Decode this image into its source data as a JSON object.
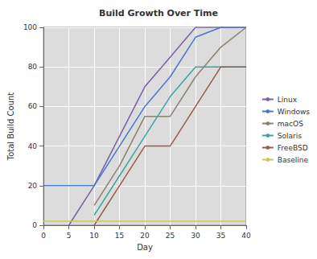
{
  "chart_data": {
    "type": "line",
    "title": "Build Growth Over Time",
    "x_label": "Day",
    "y_label": "Total Build Count",
    "x": [
      0,
      5,
      10,
      15,
      20,
      25,
      30,
      35,
      40
    ],
    "series": [
      {
        "name": "Linux",
        "color": "#7b5ea8",
        "values": [
          null,
          0,
          20,
          45,
          70,
          85,
          100,
          100,
          100
        ]
      },
      {
        "name": "Windows",
        "color": "#4a78c8",
        "values": [
          20,
          20,
          20,
          40,
          60,
          75,
          95,
          100,
          100
        ]
      },
      {
        "name": "macOS",
        "color": "#8c8070",
        "values": [
          null,
          null,
          10,
          30,
          55,
          55,
          75,
          90,
          100
        ]
      },
      {
        "name": "Solaris",
        "color": "#3aa6a0",
        "values": [
          null,
          null,
          5,
          25,
          45,
          65,
          80,
          80,
          80
        ]
      },
      {
        "name": "FreeBSD",
        "color": "#9a5a4a",
        "values": [
          null,
          null,
          0,
          20,
          40,
          40,
          60,
          80,
          80
        ]
      },
      {
        "name": "Baseline",
        "color": "#c8c850",
        "values": [
          2,
          2,
          2,
          2,
          2,
          2,
          2,
          2,
          2
        ]
      }
    ],
    "xlim": [
      0,
      40
    ],
    "xticks": [
      0,
      5,
      10,
      15,
      20,
      25,
      30,
      35,
      40
    ],
    "ylim": [
      0,
      100
    ],
    "yticks": [
      0,
      20,
      40,
      60,
      80,
      100
    ],
    "grid": true,
    "legend": "right"
  }
}
